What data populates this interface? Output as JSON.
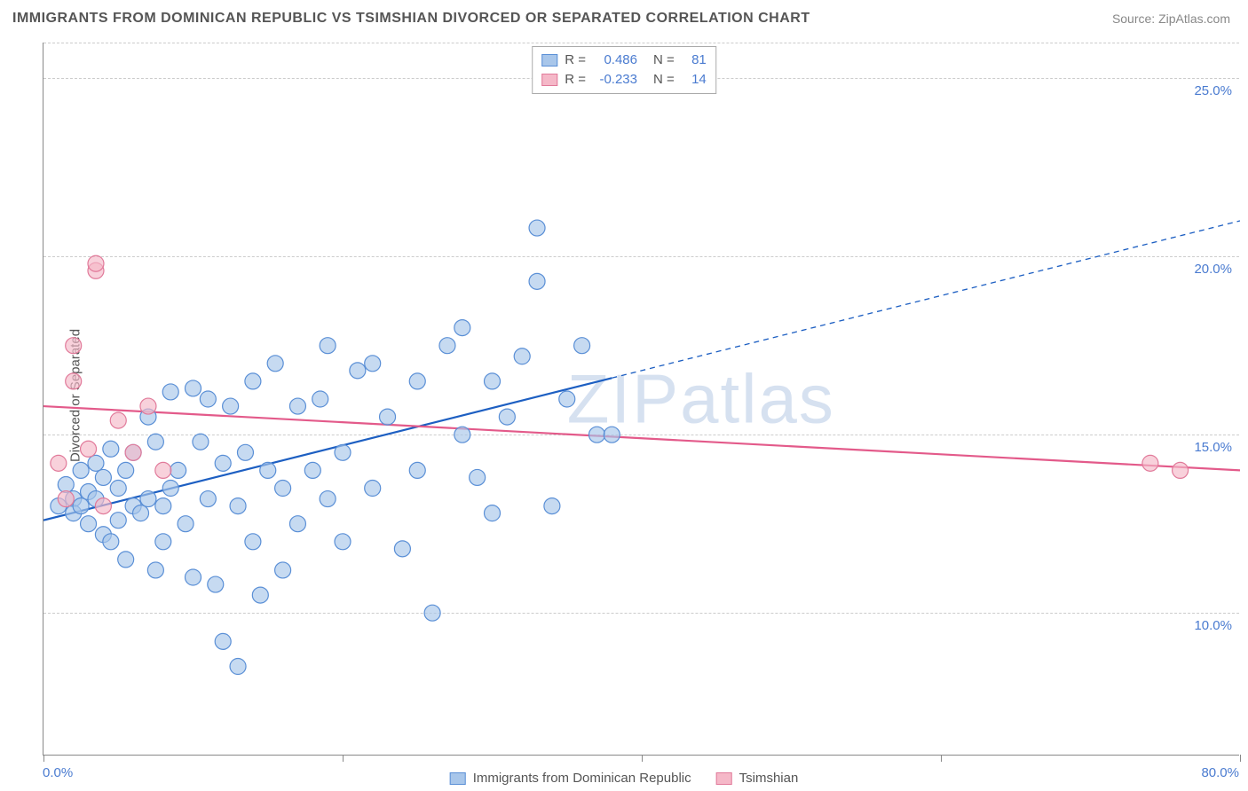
{
  "title": "IMMIGRANTS FROM DOMINICAN REPUBLIC VS TSIMSHIAN DIVORCED OR SEPARATED CORRELATION CHART",
  "source": "Source: ZipAtlas.com",
  "watermark": "ZIPatlas",
  "chart": {
    "type": "scatter",
    "ylabel": "Divorced or Separated",
    "xlim": [
      0,
      80
    ],
    "ylim": [
      6,
      26
    ],
    "x_ticks": [
      0,
      20,
      40,
      60,
      80
    ],
    "y_gridlines": [
      10,
      15,
      20,
      25
    ],
    "x_min_label": "0.0%",
    "x_max_label": "80.0%",
    "y_tick_labels": [
      "10.0%",
      "15.0%",
      "20.0%",
      "25.0%"
    ],
    "background_color": "#ffffff",
    "grid_color": "#cccccc",
    "axis_color": "#888888",
    "marker_radius": 9,
    "marker_stroke_width": 1.2,
    "trend_line_width": 2.2,
    "series": [
      {
        "name": "Immigrants from Dominican Republic",
        "fill": "#a8c6ea",
        "stroke": "#5a8fd6",
        "fill_opacity": 0.65,
        "R": "0.486",
        "N": "81",
        "trend": {
          "x1": 0,
          "y1": 12.6,
          "x2": 80,
          "y2": 21.0,
          "solid_until_x": 38
        },
        "points": [
          [
            1,
            13.0
          ],
          [
            1.5,
            13.6
          ],
          [
            2,
            13.2
          ],
          [
            2,
            12.8
          ],
          [
            2.5,
            14.0
          ],
          [
            2.5,
            13.0
          ],
          [
            3,
            12.5
          ],
          [
            3,
            13.4
          ],
          [
            3.5,
            13.2
          ],
          [
            3.5,
            14.2
          ],
          [
            4,
            12.2
          ],
          [
            4,
            13.8
          ],
          [
            4.5,
            14.6
          ],
          [
            4.5,
            12.0
          ],
          [
            5,
            13.5
          ],
          [
            5,
            12.6
          ],
          [
            5.5,
            14.0
          ],
          [
            5.5,
            11.5
          ],
          [
            6,
            13.0
          ],
          [
            6,
            14.5
          ],
          [
            6.5,
            12.8
          ],
          [
            7,
            15.5
          ],
          [
            7,
            13.2
          ],
          [
            7.5,
            11.2
          ],
          [
            7.5,
            14.8
          ],
          [
            8,
            13.0
          ],
          [
            8,
            12.0
          ],
          [
            8.5,
            16.2
          ],
          [
            8.5,
            13.5
          ],
          [
            9,
            14.0
          ],
          [
            9.5,
            12.5
          ],
          [
            10,
            16.3
          ],
          [
            10,
            11.0
          ],
          [
            10.5,
            14.8
          ],
          [
            11,
            13.2
          ],
          [
            11,
            16.0
          ],
          [
            11.5,
            10.8
          ],
          [
            12,
            14.2
          ],
          [
            12,
            9.2
          ],
          [
            12.5,
            15.8
          ],
          [
            13,
            13.0
          ],
          [
            13,
            8.5
          ],
          [
            13.5,
            14.5
          ],
          [
            14,
            16.5
          ],
          [
            14,
            12.0
          ],
          [
            14.5,
            10.5
          ],
          [
            15,
            14.0
          ],
          [
            15.5,
            17.0
          ],
          [
            16,
            13.5
          ],
          [
            16,
            11.2
          ],
          [
            17,
            15.8
          ],
          [
            17,
            12.5
          ],
          [
            18,
            14.0
          ],
          [
            18.5,
            16.0
          ],
          [
            19,
            13.2
          ],
          [
            19,
            17.5
          ],
          [
            20,
            14.5
          ],
          [
            20,
            12.0
          ],
          [
            21,
            16.8
          ],
          [
            22,
            13.5
          ],
          [
            22,
            17.0
          ],
          [
            23,
            15.5
          ],
          [
            24,
            11.8
          ],
          [
            25,
            14.0
          ],
          [
            25,
            16.5
          ],
          [
            26,
            10.0
          ],
          [
            27,
            17.5
          ],
          [
            28,
            15.0
          ],
          [
            28,
            18.0
          ],
          [
            29,
            13.8
          ],
          [
            30,
            16.5
          ],
          [
            30,
            12.8
          ],
          [
            31,
            15.5
          ],
          [
            32,
            17.2
          ],
          [
            33,
            20.8
          ],
          [
            33,
            19.3
          ],
          [
            34,
            13.0
          ],
          [
            35,
            16.0
          ],
          [
            36,
            17.5
          ],
          [
            37,
            15.0
          ],
          [
            38,
            15.0
          ]
        ]
      },
      {
        "name": "Tsimshian",
        "fill": "#f5b8c8",
        "stroke": "#e17a9a",
        "fill_opacity": 0.65,
        "R": "-0.233",
        "N": "14",
        "trend": {
          "x1": 0,
          "y1": 15.8,
          "x2": 80,
          "y2": 14.0,
          "solid_until_x": 80
        },
        "points": [
          [
            1,
            14.2
          ],
          [
            1.5,
            13.2
          ],
          [
            2,
            16.5
          ],
          [
            2,
            17.5
          ],
          [
            3,
            14.6
          ],
          [
            3.5,
            19.6
          ],
          [
            3.5,
            19.8
          ],
          [
            4,
            13.0
          ],
          [
            5,
            15.4
          ],
          [
            6,
            14.5
          ],
          [
            7,
            15.8
          ],
          [
            8,
            14.0
          ],
          [
            74,
            14.2
          ],
          [
            76,
            14.0
          ]
        ]
      }
    ],
    "legend_top": [
      {
        "swatch_fill": "#a8c6ea",
        "swatch_stroke": "#5a8fd6",
        "r_label": "R =",
        "r_value": "0.486",
        "n_label": "N =",
        "n_value": "81"
      },
      {
        "swatch_fill": "#f5b8c8",
        "swatch_stroke": "#e17a9a",
        "r_label": "R =",
        "r_value": "-0.233",
        "n_label": "N =",
        "n_value": "14"
      }
    ],
    "legend_bottom": [
      {
        "swatch_fill": "#a8c6ea",
        "swatch_stroke": "#5a8fd6",
        "label": "Immigrants from Dominican Republic"
      },
      {
        "swatch_fill": "#f5b8c8",
        "swatch_stroke": "#e17a9a",
        "label": "Tsimshian"
      }
    ]
  }
}
